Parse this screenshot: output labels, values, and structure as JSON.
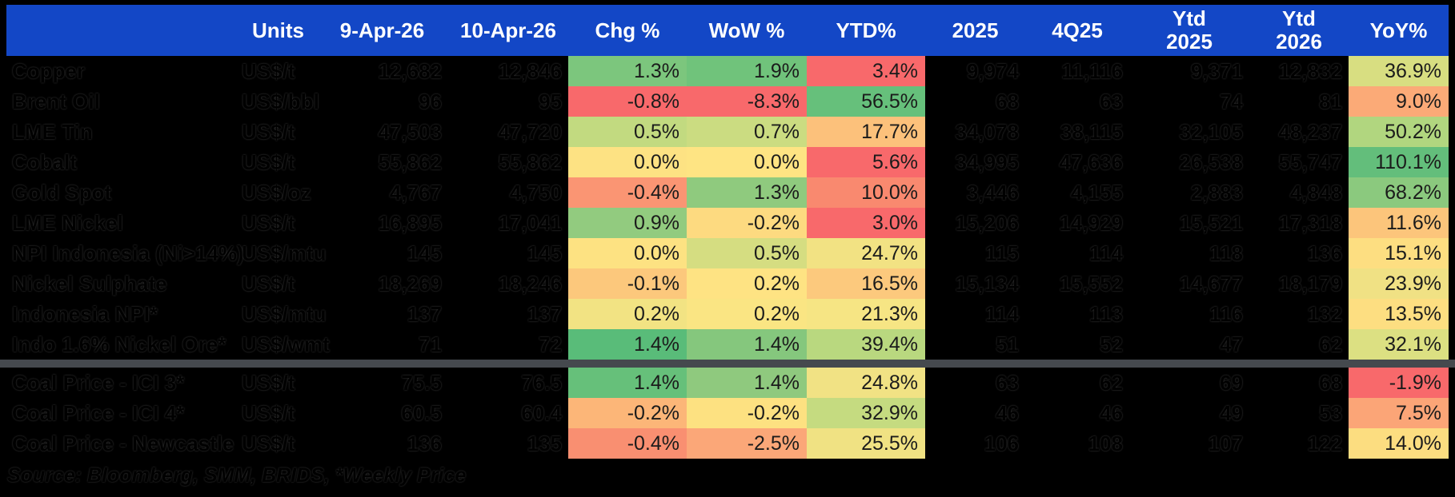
{
  "header": {
    "bg": "#1347C6",
    "units": "Units",
    "apr9": "9-Apr-26",
    "apr10": "10-Apr-26",
    "chg": "Chg %",
    "wow": "WoW %",
    "ytd": "YTD%",
    "y2025": "2025",
    "q425": "4Q25",
    "ytd25_top": "Ytd",
    "ytd25_bottom": "2025",
    "ytd26_top": "Ytd",
    "ytd26_bottom": "2026",
    "yoy": "YoY%"
  },
  "divider_color": "#45494E",
  "rows": [
    {
      "group": 1,
      "label": "Copper",
      "units": "US$/t",
      "apr9": "12,682",
      "apr10": "12,846",
      "chg": {
        "v": "1.3%",
        "bg": "#7CC67D"
      },
      "wow": {
        "v": "1.9%",
        "bg": "#70C37B"
      },
      "ytd": {
        "v": "3.4%",
        "bg": "#F8696B"
      },
      "y2025": "9,974",
      "q425": "11,116",
      "ytd25": "9,371",
      "ytd26": "12,832",
      "yoy": {
        "v": "36.9%",
        "bg": "#D8DE81"
      }
    },
    {
      "group": 1,
      "label": "Brent Oil",
      "units": "US$/bbl",
      "apr9": "96",
      "apr10": "95",
      "chg": {
        "v": "-0.8%",
        "bg": "#F8696B"
      },
      "wow": {
        "v": "-8.3%",
        "bg": "#F8696B"
      },
      "ytd": {
        "v": "56.5%",
        "bg": "#66C07B"
      },
      "y2025": "68",
      "q425": "63",
      "ytd25": "74",
      "ytd26": "81",
      "yoy": {
        "v": "9.0%",
        "bg": "#FBAA77"
      }
    },
    {
      "group": 1,
      "label": "LME Tin",
      "units": "US$/t",
      "apr9": "47,503",
      "apr10": "47,720",
      "chg": {
        "v": "0.5%",
        "bg": "#C2DA80"
      },
      "wow": {
        "v": "0.7%",
        "bg": "#CBDC81"
      },
      "ytd": {
        "v": "17.7%",
        "bg": "#FCC17B"
      },
      "y2025": "34,078",
      "q425": "38,115",
      "ytd25": "32,105",
      "ytd26": "48,237",
      "yoy": {
        "v": "50.2%",
        "bg": "#B1D67F"
      }
    },
    {
      "group": 1,
      "label": "Cobalt",
      "units": "US$/t",
      "apr9": "55,862",
      "apr10": "55,862",
      "chg": {
        "v": "0.0%",
        "bg": "#FDE283"
      },
      "wow": {
        "v": "0.0%",
        "bg": "#FEE483"
      },
      "ytd": {
        "v": "5.6%",
        "bg": "#F8696B"
      },
      "y2025": "34,995",
      "q425": "47,636",
      "ytd25": "26,538",
      "ytd26": "55,747",
      "yoy": {
        "v": "110.1%",
        "bg": "#63BE7B"
      }
    },
    {
      "group": 1,
      "label": "Gold Spot",
      "units": "US$/oz",
      "apr9": "4,767",
      "apr10": "4,750",
      "chg": {
        "v": "-0.4%",
        "bg": "#FA9573"
      },
      "wow": {
        "v": "1.3%",
        "bg": "#8FCA7E"
      },
      "ytd": {
        "v": "10.0%",
        "bg": "#F9896F"
      },
      "y2025": "3,446",
      "q425": "4,155",
      "ytd25": "2,883",
      "ytd26": "4,848",
      "yoy": {
        "v": "68.2%",
        "bg": "#8BC97E"
      }
    },
    {
      "group": 1,
      "label": "LME Nickel",
      "units": "US$/t",
      "apr9": "16,895",
      "apr10": "17,041",
      "chg": {
        "v": "0.9%",
        "bg": "#92CB7F"
      },
      "wow": {
        "v": "-0.2%",
        "bg": "#FDDA80"
      },
      "ytd": {
        "v": "3.0%",
        "bg": "#F8696B"
      },
      "y2025": "15,206",
      "q425": "14,929",
      "ytd25": "15,521",
      "ytd26": "17,318",
      "yoy": {
        "v": "11.6%",
        "bg": "#FCC57B"
      }
    },
    {
      "group": 1,
      "label": "NPI Indonesia (Ni>14%)",
      "units": "US$/mtu",
      "apr9": "145",
      "apr10": "145",
      "chg": {
        "v": "0.0%",
        "bg": "#FDE282"
      },
      "wow": {
        "v": "0.5%",
        "bg": "#D5DD81"
      },
      "ytd": {
        "v": "24.7%",
        "bg": "#F2E283"
      },
      "y2025": "115",
      "q425": "114",
      "ytd25": "118",
      "ytd26": "136",
      "yoy": {
        "v": "15.1%",
        "bg": "#FDDE81"
      }
    },
    {
      "group": 1,
      "label": "Nickel Sulphate",
      "units": "US$/t",
      "apr9": "18,269",
      "apr10": "18,246",
      "chg": {
        "v": "-0.1%",
        "bg": "#FCC87C"
      },
      "wow": {
        "v": "0.2%",
        "bg": "#FEE383"
      },
      "ytd": {
        "v": "16.5%",
        "bg": "#FCC97D"
      },
      "y2025": "15,134",
      "q425": "15,552",
      "ytd25": "14,677",
      "ytd26": "18,179",
      "yoy": {
        "v": "23.9%",
        "bg": "#F0E184"
      }
    },
    {
      "group": 1,
      "label": "Indonesia NPI*",
      "units": "US$/mtu",
      "apr9": "137",
      "apr10": "137",
      "chg": {
        "v": "0.2%",
        "bg": "#F2E383"
      },
      "wow": {
        "v": "0.2%",
        "bg": "#FAE583"
      },
      "ytd": {
        "v": "21.3%",
        "bg": "#F6E584"
      },
      "y2025": "114",
      "q425": "113",
      "ytd25": "116",
      "ytd26": "132",
      "yoy": {
        "v": "13.5%",
        "bg": "#FDDE81"
      }
    },
    {
      "group": 1,
      "label": "Indo 1.6% Nickel Ore*",
      "units": "US$/wmt",
      "apr9": "71",
      "apr10": "72",
      "chg": {
        "v": "1.4%",
        "bg": "#59BC79"
      },
      "wow": {
        "v": "1.4%",
        "bg": "#85C77D"
      },
      "ytd": {
        "v": "39.4%",
        "bg": "#B9D87F"
      },
      "y2025": "51",
      "q425": "52",
      "ytd25": "47",
      "ytd26": "62",
      "yoy": {
        "v": "32.1%",
        "bg": "#DCE082"
      }
    },
    {
      "group": 2,
      "label": "Coal Price - ICI 3*",
      "units": "US$/t",
      "apr9": "75.5",
      "apr10": "76.5",
      "chg": {
        "v": "1.4%",
        "bg": "#66C07A"
      },
      "wow": {
        "v": "1.4%",
        "bg": "#8FC97E"
      },
      "ytd": {
        "v": "24.8%",
        "bg": "#F1E284"
      },
      "y2025": "63",
      "q425": "62",
      "ytd25": "69",
      "ytd26": "68",
      "yoy": {
        "v": "-1.9%",
        "bg": "#F8696B"
      }
    },
    {
      "group": 2,
      "label": "Coal Price - ICI 4*",
      "units": "US$/t",
      "apr9": "60.5",
      "apr10": "60.4",
      "chg": {
        "v": "-0.2%",
        "bg": "#FCB678"
      },
      "wow": {
        "v": "-0.2%",
        "bg": "#FDE181"
      },
      "ytd": {
        "v": "32.9%",
        "bg": "#C5DB80"
      },
      "y2025": "46",
      "q425": "46",
      "ytd25": "49",
      "ytd26": "53",
      "yoy": {
        "v": "7.5%",
        "bg": "#FBA577"
      }
    },
    {
      "group": 2,
      "label": "Coal Price - Newcastle",
      "units": "US$/t",
      "apr9": "136",
      "apr10": "135",
      "chg": {
        "v": "-0.4%",
        "bg": "#F98F71"
      },
      "wow": {
        "v": "-2.5%",
        "bg": "#FBA778"
      },
      "ytd": {
        "v": "25.5%",
        "bg": "#F0E283"
      },
      "y2025": "106",
      "q425": "108",
      "ytd25": "107",
      "ytd26": "122",
      "yoy": {
        "v": "14.0%",
        "bg": "#FCDD80"
      }
    }
  ],
  "footer": {
    "source": "Source: Bloomberg, SMM, BRIDS, *Weekly Price"
  }
}
